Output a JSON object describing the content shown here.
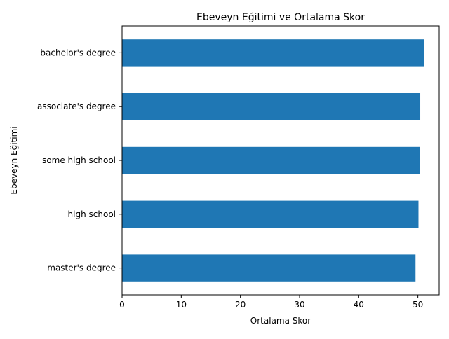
{
  "chart_data": {
    "type": "bar",
    "orientation": "horizontal",
    "title": "Ebeveyn Eğitimi ve Ortalama Skor",
    "xlabel": "Ortalama Skor",
    "ylabel": "Ebeveyn Eğitimi",
    "categories": [
      "master's degree",
      "high school",
      "some high school",
      "associate's degree",
      "bachelor's degree"
    ],
    "values": [
      49.6,
      50.1,
      50.3,
      50.4,
      51.1
    ],
    "xlim": [
      0,
      53.6
    ],
    "xticks": [
      0,
      10,
      20,
      30,
      40,
      50
    ],
    "bar_color": "#1f77b4",
    "grid": false,
    "legend": false
  }
}
